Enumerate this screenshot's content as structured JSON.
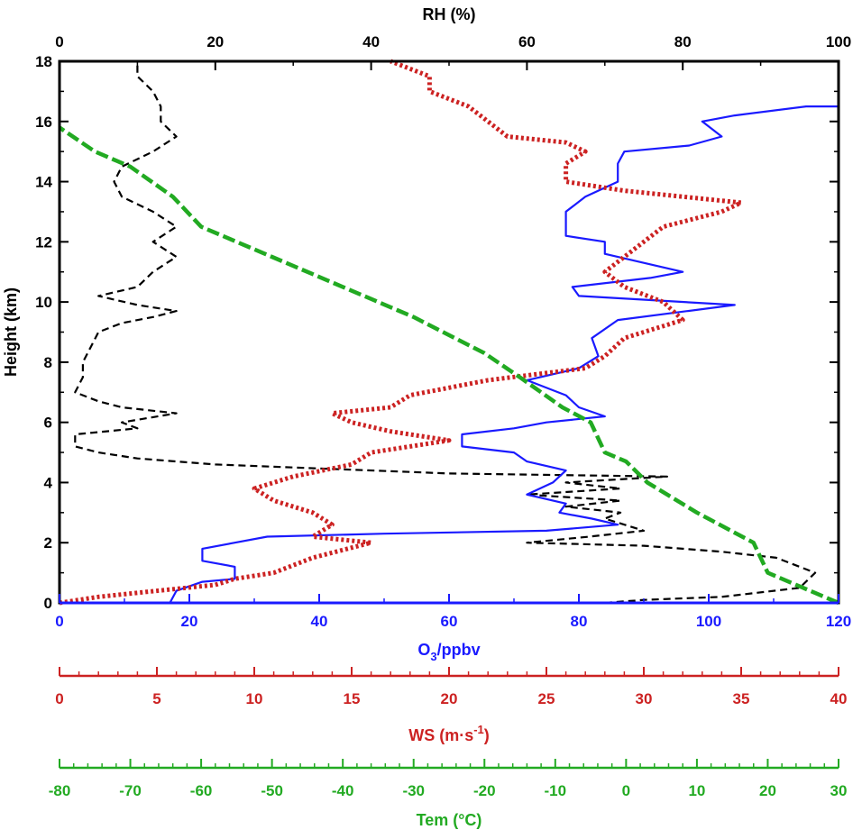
{
  "chart_data": {
    "type": "line",
    "grid": false,
    "axes": {
      "height": {
        "label": "Height (km)",
        "range": [
          0,
          18
        ],
        "ticks": [
          0,
          2,
          4,
          6,
          8,
          10,
          12,
          14,
          16,
          18
        ],
        "color": "#000000"
      },
      "rh": {
        "label": "RH (%)",
        "range": [
          0,
          100
        ],
        "ticks": [
          0,
          20,
          40,
          60,
          80,
          100
        ],
        "color": "#000000"
      },
      "o3": {
        "label_main": "O",
        "label_sub": "3",
        "label_rest": "/ppbv",
        "range": [
          0,
          120
        ],
        "ticks": [
          0,
          20,
          40,
          60,
          80,
          100,
          120
        ],
        "color": "#1a1aff"
      },
      "ws": {
        "label_main": "WS (m·s",
        "label_sup": "-1",
        "label_rest": ")",
        "range": [
          0,
          40
        ],
        "ticks": [
          0,
          5,
          10,
          15,
          20,
          25,
          30,
          35,
          40
        ],
        "color": "#cc2222"
      },
      "tem": {
        "label": "Tem (°C)",
        "range": [
          -80,
          30
        ],
        "ticks": [
          -80,
          -70,
          -60,
          -50,
          -40,
          -30,
          -20,
          -10,
          0,
          10,
          20,
          30
        ],
        "color": "#22aa22"
      }
    },
    "series": [
      {
        "axis": "rh",
        "color": "#000000",
        "style": "dashed",
        "points": [
          [
            70,
            0
          ],
          [
            75,
            0.1
          ],
          [
            85,
            0.2
          ],
          [
            95,
            0.5
          ],
          [
            97,
            1.0
          ],
          [
            92,
            1.5
          ],
          [
            85,
            1.7
          ],
          [
            75,
            1.9
          ],
          [
            60,
            2.0
          ],
          [
            68,
            2.2
          ],
          [
            75,
            2.4
          ],
          [
            70,
            2.8
          ],
          [
            72,
            3.0
          ],
          [
            65,
            3.2
          ],
          [
            72,
            3.4
          ],
          [
            60,
            3.6
          ],
          [
            72,
            3.8
          ],
          [
            65,
            4.0
          ],
          [
            78,
            4.2
          ],
          [
            50,
            4.3
          ],
          [
            20,
            4.6
          ],
          [
            10,
            4.8
          ],
          [
            5,
            5.0
          ],
          [
            2,
            5.2
          ],
          [
            2,
            5.6
          ],
          [
            10,
            5.8
          ],
          [
            8,
            6.0
          ],
          [
            15,
            6.3
          ],
          [
            8,
            6.5
          ],
          [
            5,
            6.7
          ],
          [
            2,
            7.0
          ],
          [
            3,
            7.5
          ],
          [
            3,
            8.0
          ],
          [
            4,
            8.5
          ],
          [
            5,
            9.0
          ],
          [
            8,
            9.3
          ],
          [
            12,
            9.5
          ],
          [
            15,
            9.7
          ],
          [
            10,
            9.9
          ],
          [
            5,
            10.2
          ],
          [
            10,
            10.5
          ],
          [
            12,
            11.0
          ],
          [
            15,
            11.5
          ],
          [
            12,
            12.0
          ],
          [
            15,
            12.5
          ],
          [
            12,
            13.0
          ],
          [
            8,
            13.5
          ],
          [
            7,
            14.0
          ],
          [
            8,
            14.5
          ],
          [
            12,
            15.0
          ],
          [
            15,
            15.5
          ],
          [
            13,
            16.0
          ],
          [
            13,
            16.5
          ],
          [
            12,
            17.0
          ],
          [
            10,
            17.5
          ],
          [
            10,
            18.0
          ]
        ]
      },
      {
        "axis": "o3",
        "color": "#1a1aff",
        "style": "solid",
        "points": [
          [
            17,
            0
          ],
          [
            18,
            0.4
          ],
          [
            22,
            0.7
          ],
          [
            27,
            0.8
          ],
          [
            27,
            1.2
          ],
          [
            22,
            1.4
          ],
          [
            22,
            1.8
          ],
          [
            27,
            2.0
          ],
          [
            32,
            2.2
          ],
          [
            50,
            2.3
          ],
          [
            75,
            2.4
          ],
          [
            86,
            2.6
          ],
          [
            82,
            2.8
          ],
          [
            77,
            3.0
          ],
          [
            78,
            3.3
          ],
          [
            72,
            3.6
          ],
          [
            76,
            4.0
          ],
          [
            78,
            4.4
          ],
          [
            72,
            4.7
          ],
          [
            70,
            5.0
          ],
          [
            62,
            5.2
          ],
          [
            62,
            5.6
          ],
          [
            70,
            5.8
          ],
          [
            75,
            6.0
          ],
          [
            84,
            6.2
          ],
          [
            80,
            6.5
          ],
          [
            78,
            6.9
          ],
          [
            72,
            7.4
          ],
          [
            80,
            7.8
          ],
          [
            83,
            8.2
          ],
          [
            82,
            8.8
          ],
          [
            86,
            9.4
          ],
          [
            104,
            9.9
          ],
          [
            80,
            10.2
          ],
          [
            79,
            10.5
          ],
          [
            91,
            10.8
          ],
          [
            96,
            11.0
          ],
          [
            84,
            11.6
          ],
          [
            84,
            12.0
          ],
          [
            78,
            12.2
          ],
          [
            78,
            13.0
          ],
          [
            81,
            13.5
          ],
          [
            86,
            14.0
          ],
          [
            86,
            14.6
          ],
          [
            87,
            15.0
          ],
          [
            97,
            15.2
          ],
          [
            102,
            15.5
          ],
          [
            99,
            16.0
          ],
          [
            104,
            16.2
          ],
          [
            115,
            16.5
          ],
          [
            120,
            16.5
          ]
        ]
      },
      {
        "axis": "ws",
        "color": "#cc2222",
        "style": "dotted",
        "points": [
          [
            0,
            0
          ],
          [
            2,
            0.2
          ],
          [
            5,
            0.4
          ],
          [
            8,
            0.6
          ],
          [
            9,
            0.8
          ],
          [
            11,
            1.0
          ],
          [
            13,
            1.5
          ],
          [
            16,
            2.0
          ],
          [
            13,
            2.2
          ],
          [
            14,
            2.6
          ],
          [
            13,
            3.0
          ],
          [
            11,
            3.4
          ],
          [
            10,
            3.8
          ],
          [
            12,
            4.2
          ],
          [
            15,
            4.6
          ],
          [
            16,
            5.0
          ],
          [
            20,
            5.4
          ],
          [
            17,
            5.7
          ],
          [
            15,
            6.0
          ],
          [
            14,
            6.3
          ],
          [
            17,
            6.5
          ],
          [
            18,
            6.9
          ],
          [
            22,
            7.4
          ],
          [
            27,
            7.8
          ],
          [
            28,
            8.2
          ],
          [
            29,
            8.8
          ],
          [
            32,
            9.4
          ],
          [
            31,
            10.0
          ],
          [
            29,
            10.5
          ],
          [
            28,
            11.0
          ],
          [
            29,
            11.5
          ],
          [
            30,
            12.0
          ],
          [
            31,
            12.5
          ],
          [
            34,
            13.0
          ],
          [
            35,
            13.3
          ],
          [
            29,
            13.7
          ],
          [
            26,
            14.0
          ],
          [
            26,
            14.6
          ],
          [
            27,
            15.0
          ],
          [
            26,
            15.3
          ],
          [
            23,
            15.5
          ],
          [
            22,
            16.0
          ],
          [
            21,
            16.5
          ],
          [
            19,
            17.0
          ],
          [
            19,
            17.5
          ],
          [
            17,
            18.0
          ]
        ]
      },
      {
        "axis": "tem",
        "color": "#22aa22",
        "style": "dashed",
        "points": [
          [
            30,
            0
          ],
          [
            20,
            1.0
          ],
          [
            18,
            2.0
          ],
          [
            10,
            3.0
          ],
          [
            3,
            4.0
          ],
          [
            0,
            4.7
          ],
          [
            -3,
            5.0
          ],
          [
            -5,
            6.0
          ],
          [
            -9,
            6.5
          ],
          [
            -15,
            7.5
          ],
          [
            -20,
            8.3
          ],
          [
            -30,
            9.5
          ],
          [
            -40,
            10.5
          ],
          [
            -50,
            11.5
          ],
          [
            -60,
            12.5
          ],
          [
            -62,
            13.0
          ],
          [
            -64,
            13.5
          ],
          [
            -70,
            14.5
          ],
          [
            -75,
            15.0
          ],
          [
            -80,
            15.8
          ]
        ]
      }
    ]
  }
}
